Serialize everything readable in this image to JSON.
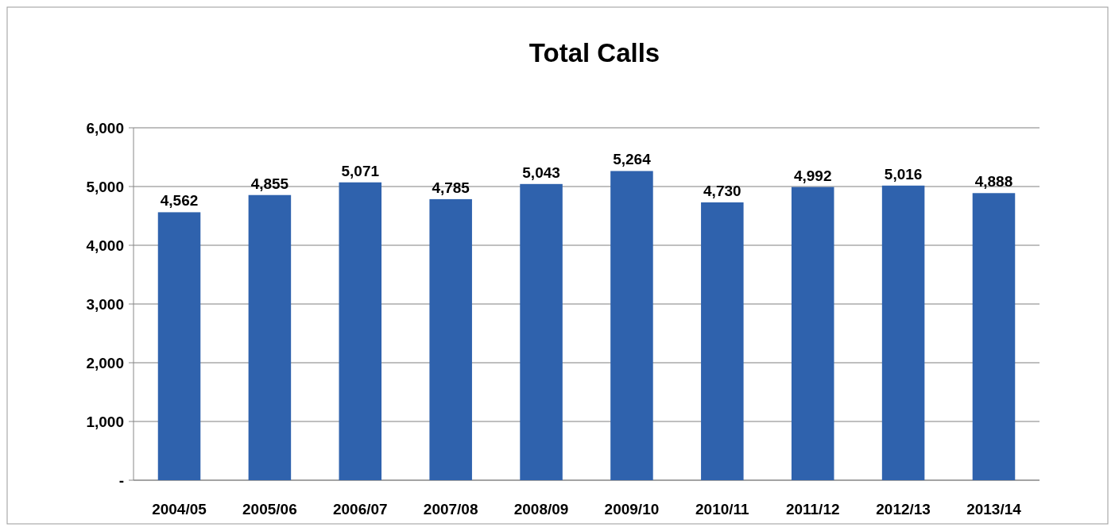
{
  "chart_data": {
    "type": "bar",
    "title": "Total Calls",
    "categories": [
      "2004/05",
      "2005/06",
      "2006/07",
      "2007/08",
      "2008/09",
      "2009/10",
      "2010/11",
      "2011/12",
      "2012/13",
      "2013/14"
    ],
    "values": [
      4562,
      4855,
      5071,
      4785,
      5043,
      5264,
      4730,
      4992,
      5016,
      4888
    ],
    "color": "#2f62ad",
    "ylim": [
      0,
      6000
    ],
    "yticks": [
      {
        "value": 0,
        "label": "-"
      },
      {
        "value": 1000,
        "label": "1,000"
      },
      {
        "value": 2000,
        "label": "2,000"
      },
      {
        "value": 3000,
        "label": "3,000"
      },
      {
        "value": 4000,
        "label": "4,000"
      },
      {
        "value": 5000,
        "label": "5,000"
      },
      {
        "value": 6000,
        "label": "6,000"
      }
    ],
    "value_labels": [
      "4,562",
      "4,855",
      "5,071",
      "4,785",
      "5,043",
      "5,264",
      "4,730",
      "4,992",
      "5,016",
      "4,888"
    ],
    "grid": "y"
  }
}
